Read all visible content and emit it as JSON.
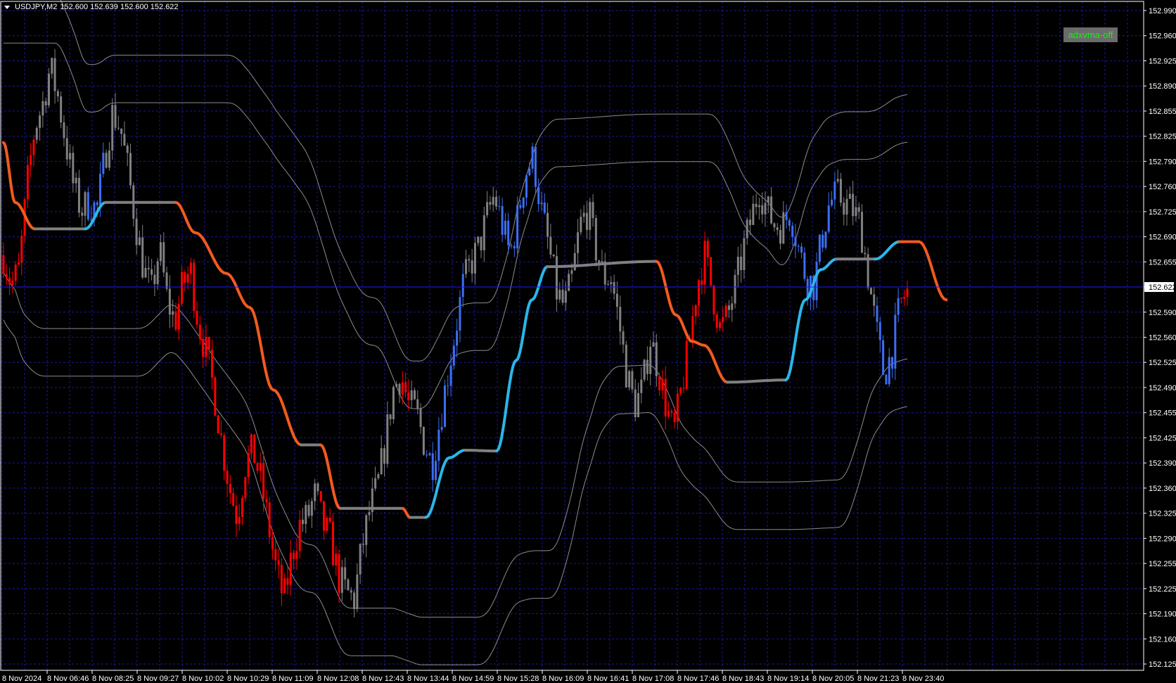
{
  "header": {
    "symbol": "USDJPY,M2",
    "values": "152.600 152.639 152.600 152.622"
  },
  "button": {
    "label": "adxvma-off"
  },
  "colors": {
    "background": "#000000",
    "grid": "#1a1a9a",
    "axis": "#ffffff",
    "bull": "#3d6ef0",
    "bear": "#ff0000",
    "neutral": "#808080",
    "adxvma_up": "#2bb6e8",
    "adxvma_down": "#f25a1e",
    "adxvma_flat": "#808080",
    "bands": "#8c8c8c",
    "button_bg": "#6b6b6b",
    "button_text": "#00ff00"
  },
  "chart_data": {
    "type": "candlestick",
    "symbol": "USDJPY",
    "timeframe": "M2",
    "ohlc": {
      "open": 152.6,
      "high": 152.639,
      "low": 152.6,
      "close": 152.622
    },
    "grid": true,
    "price_axis": {
      "range": [
        152.125,
        152.99
      ],
      "ticks": [
        "152.990",
        "152.960",
        "152.925",
        "152.890",
        "152.855",
        "152.825",
        "152.790",
        "152.760",
        "152.725",
        "152.690",
        "152.655",
        "152.622",
        "152.590",
        "152.560",
        "152.525",
        "152.490",
        "152.455",
        "152.425",
        "152.390",
        "152.360",
        "152.325",
        "152.290",
        "152.255",
        "152.225",
        "152.190",
        "152.160",
        "152.125"
      ],
      "current": "152.622"
    },
    "time_axis": {
      "ticks": [
        "8 Nov 2024",
        "8 Nov 06:46",
        "8 Nov 08:25",
        "8 Nov 09:27",
        "8 Nov 10:02",
        "8 Nov 10:29",
        "8 Nov 11:09",
        "8 Nov 12:08",
        "8 Nov 12:43",
        "8 Nov 13:44",
        "8 Nov 14:59",
        "8 Nov 15:28",
        "8 Nov 16:09",
        "8 Nov 16:41",
        "8 Nov 17:08",
        "8 Nov 17:46",
        "8 Nov 18:43",
        "8 Nov 19:14",
        "8 Nov 20:05",
        "8 Nov 21:23",
        "8 Nov 23:40"
      ]
    },
    "price_path": [
      152.666,
      152.627,
      152.647,
      152.756,
      152.835,
      152.865,
      152.915,
      152.875,
      152.815,
      152.756,
      152.726,
      152.736,
      152.726,
      152.795,
      152.855,
      152.835,
      152.776,
      152.706,
      152.647,
      152.617,
      152.676,
      152.607,
      152.577,
      152.627,
      152.647,
      152.577,
      152.537,
      152.488,
      152.418,
      152.359,
      152.319,
      152.388,
      152.408,
      152.369,
      152.309,
      152.249,
      152.21,
      152.269,
      152.309,
      152.319,
      152.349,
      152.309,
      152.289,
      152.239,
      152.22,
      152.21,
      152.279,
      152.329,
      152.359,
      152.418,
      152.488,
      152.508,
      152.468,
      152.458,
      152.418,
      152.388,
      152.448,
      152.508,
      152.567,
      152.627,
      152.656,
      152.676,
      152.716,
      152.746,
      152.706,
      152.666,
      152.716,
      152.776,
      152.795,
      152.726,
      152.676,
      152.617,
      152.597,
      152.637,
      152.706,
      152.726,
      152.676,
      152.637,
      152.637,
      152.577,
      152.508,
      152.468,
      152.488,
      152.557,
      152.517,
      152.468,
      152.428,
      152.488,
      152.547,
      152.627,
      152.666,
      152.617,
      152.567,
      152.587,
      152.627,
      152.676,
      152.716,
      152.756,
      152.726,
      152.706,
      152.706,
      152.726,
      152.676,
      152.637,
      152.627,
      152.686,
      152.736,
      152.746,
      152.736,
      152.726,
      152.706,
      152.637,
      152.567,
      152.508,
      152.537,
      152.597,
      152.622
    ],
    "adxvma": [
      {
        "bar": 0,
        "price": 152.815,
        "trend": "down"
      },
      {
        "bar": 1.5,
        "price": 152.736,
        "trend": "down"
      },
      {
        "bar": 4.0,
        "price": 152.701,
        "trend": "down"
      },
      {
        "bar": 10.5,
        "price": 152.701,
        "trend": "flat"
      },
      {
        "bar": 13.1,
        "price": 152.736,
        "trend": "up"
      },
      {
        "bar": 22.1,
        "price": 152.736,
        "trend": "flat"
      },
      {
        "bar": 24.6,
        "price": 152.696,
        "trend": "down"
      },
      {
        "bar": 28.6,
        "price": 152.642,
        "trend": "down"
      },
      {
        "bar": 31.6,
        "price": 152.597,
        "trend": "down"
      },
      {
        "bar": 34.6,
        "price": 152.488,
        "trend": "down"
      },
      {
        "bar": 38.2,
        "price": 152.415,
        "trend": "down"
      },
      {
        "bar": 40.7,
        "price": 152.415,
        "trend": "flat"
      },
      {
        "bar": 43.2,
        "price": 152.331,
        "trend": "down"
      },
      {
        "bar": 51.2,
        "price": 152.331,
        "trend": "flat"
      },
      {
        "bar": 52.2,
        "price": 152.319,
        "trend": "down"
      },
      {
        "bar": 54.2,
        "price": 152.319,
        "trend": "flat"
      },
      {
        "bar": 57.2,
        "price": 152.398,
        "trend": "up"
      },
      {
        "bar": 59.2,
        "price": 152.408,
        "trend": "up"
      },
      {
        "bar": 63.3,
        "price": 152.407,
        "trend": "flat"
      },
      {
        "bar": 65.8,
        "price": 152.527,
        "trend": "up"
      },
      {
        "bar": 67.8,
        "price": 152.607,
        "trend": "up"
      },
      {
        "bar": 69.8,
        "price": 152.651,
        "trend": "up"
      },
      {
        "bar": 83.8,
        "price": 152.658,
        "trend": "flat"
      },
      {
        "bar": 86.3,
        "price": 152.587,
        "trend": "down"
      },
      {
        "bar": 88.4,
        "price": 152.552,
        "trend": "down"
      },
      {
        "bar": 89.9,
        "price": 152.547,
        "trend": "down"
      },
      {
        "bar": 92.9,
        "price": 152.498,
        "trend": "down"
      },
      {
        "bar": 100.4,
        "price": 152.501,
        "trend": "flat"
      },
      {
        "bar": 102.9,
        "price": 152.607,
        "trend": "up"
      },
      {
        "bar": 104.9,
        "price": 152.647,
        "trend": "up"
      },
      {
        "bar": 106.9,
        "price": 152.661,
        "trend": "up"
      },
      {
        "bar": 111.9,
        "price": 152.661,
        "trend": "flat"
      },
      {
        "bar": 115.0,
        "price": 152.684,
        "trend": "up"
      },
      {
        "bar": 117.5,
        "price": 152.684,
        "trend": "down"
      },
      {
        "bar": 121.0,
        "price": 152.607,
        "trend": "down"
      }
    ]
  }
}
